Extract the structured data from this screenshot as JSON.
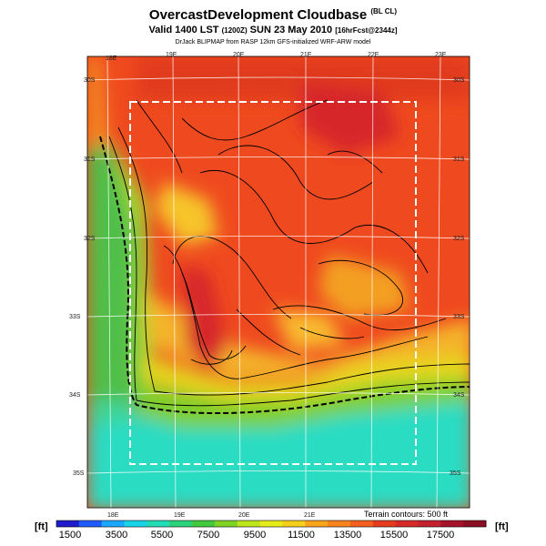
{
  "title": {
    "main": "OvercastDevelopment Cloudbase",
    "main_suffix": "(BL CL)",
    "valid_prefix": "Valid 1400 LST",
    "valid_mid": "(1200Z)",
    "valid_date": "SUN 23 May 2010",
    "valid_suffix": "[16hrFcst@2344z]",
    "credit": "DrJack BLIPMAP from RASP 12km GFS-initialized WRF-ARW model"
  },
  "map": {
    "lon_labels_top": [
      "18E",
      "19E",
      "20E",
      "21E",
      "22E",
      "23E"
    ],
    "lon_labels_bottom": [
      "18E",
      "19E",
      "20E",
      "21E"
    ],
    "lat_labels_left": [
      "30S",
      "31S",
      "32S",
      "33S",
      "34S",
      "35S"
    ],
    "lat_labels_right": [
      "30S",
      "31S",
      "32S",
      "33S",
      "34S",
      "35S"
    ],
    "terrain_note": "Terrain contours: 500 ft"
  },
  "colorbar": {
    "unit_left": "[ft]",
    "unit_right": "[ft]",
    "ticks": [
      "1500",
      "3500",
      "5500",
      "7500",
      "9500",
      "11500",
      "13500",
      "15500",
      "17500"
    ],
    "colors": [
      "#1c1ccc",
      "#1e5bff",
      "#1aa8ff",
      "#19d3e6",
      "#21dcb4",
      "#2cd27a",
      "#42c93c",
      "#7ed323",
      "#bde51b",
      "#e6ec1b",
      "#f6cf1a",
      "#f9a51c",
      "#f8841e",
      "#f25f1f",
      "#e53c1e",
      "#d62a28",
      "#c3212e",
      "#a5142b",
      "#8a0f23"
    ]
  },
  "cloudbase_value_colors": {
    "low_ocean": "#2cdcc2",
    "coastal": "#4fbf4a",
    "mid": "#f4b32a",
    "high": "#ef4a1f",
    "peak": "#d8262a"
  }
}
